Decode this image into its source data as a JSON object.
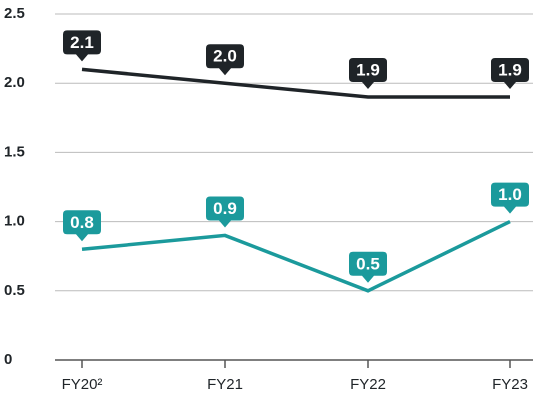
{
  "chart_data": {
    "type": "line",
    "categories": [
      "FY20²",
      "FY21",
      "FY22",
      "FY23"
    ],
    "series": [
      {
        "color": "#1f2428",
        "values": [
          2.1,
          2.0,
          1.9,
          1.9
        ],
        "value_labels": [
          "2.1",
          "2.0",
          "1.9",
          "1.9"
        ]
      },
      {
        "color": "#1b9a9c",
        "values": [
          0.8,
          0.9,
          0.5,
          1.0
        ],
        "value_labels": [
          "0.8",
          "0.9",
          "0.5",
          "1.0"
        ]
      }
    ],
    "ylim": [
      0,
      2.5
    ],
    "yticks": [
      0,
      0.5,
      {
        "value": 1,
        "label": "1.0"
      },
      1.5,
      {
        "value": 2,
        "label": "2.0"
      },
      2.5
    ],
    "grid": true
  }
}
